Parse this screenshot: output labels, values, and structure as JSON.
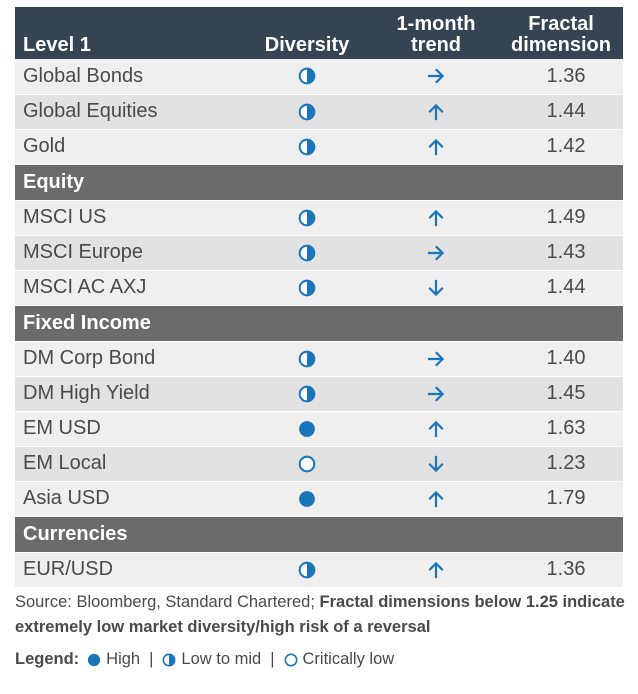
{
  "header": {
    "col1": "Level 1",
    "col2": "Diversity",
    "col3_line1": "1-month",
    "col3_line2": "trend",
    "col4_line1": "Fractal",
    "col4_line2": "dimension"
  },
  "colors": {
    "header_bg": "#354352",
    "section_bg": "#6b6b6b",
    "accent_blue": "#1b75bb",
    "row_light": "#efefef",
    "row_dark": "#e2e2e2"
  },
  "rows": [
    {
      "kind": "data",
      "name": "Global Bonds",
      "diversity": "half",
      "trend": "right",
      "fractal": "1.36"
    },
    {
      "kind": "data",
      "name": "Global Equities",
      "diversity": "half",
      "trend": "up",
      "fractal": "1.44"
    },
    {
      "kind": "data",
      "name": "Gold",
      "diversity": "half",
      "trend": "up",
      "fractal": "1.42"
    },
    {
      "kind": "section",
      "name": "Equity"
    },
    {
      "kind": "data",
      "name": "MSCI US",
      "diversity": "half",
      "trend": "up",
      "fractal": "1.49"
    },
    {
      "kind": "data",
      "name": "MSCI Europe",
      "diversity": "half",
      "trend": "right",
      "fractal": "1.43"
    },
    {
      "kind": "data",
      "name": "MSCI AC AXJ",
      "diversity": "half",
      "trend": "down",
      "fractal": "1.44"
    },
    {
      "kind": "section",
      "name": "Fixed Income"
    },
    {
      "kind": "data",
      "name": "DM Corp Bond",
      "diversity": "half",
      "trend": "right",
      "fractal": "1.40"
    },
    {
      "kind": "data",
      "name": "DM High Yield",
      "diversity": "half",
      "trend": "right",
      "fractal": "1.45"
    },
    {
      "kind": "data",
      "name": "EM USD",
      "diversity": "full",
      "trend": "up",
      "fractal": "1.63"
    },
    {
      "kind": "data",
      "name": "EM Local",
      "diversity": "empty",
      "trend": "down",
      "fractal": "1.23"
    },
    {
      "kind": "data",
      "name": "Asia USD",
      "diversity": "full",
      "trend": "up",
      "fractal": "1.79"
    },
    {
      "kind": "section",
      "name": "Currencies"
    },
    {
      "kind": "data",
      "name": "EUR/USD",
      "diversity": "half",
      "trend": "up",
      "fractal": "1.36"
    }
  ],
  "source": {
    "plain": "Source: Bloomberg, Standard Chartered; ",
    "bold": "Fractal dimensions below 1.25 indicate extremely low market diversity/high risk of a reversal"
  },
  "legend": {
    "title": "Legend:",
    "high": "High",
    "low_to_mid": "Low to mid",
    "critically_low": "Critically low",
    "separator": "|"
  }
}
